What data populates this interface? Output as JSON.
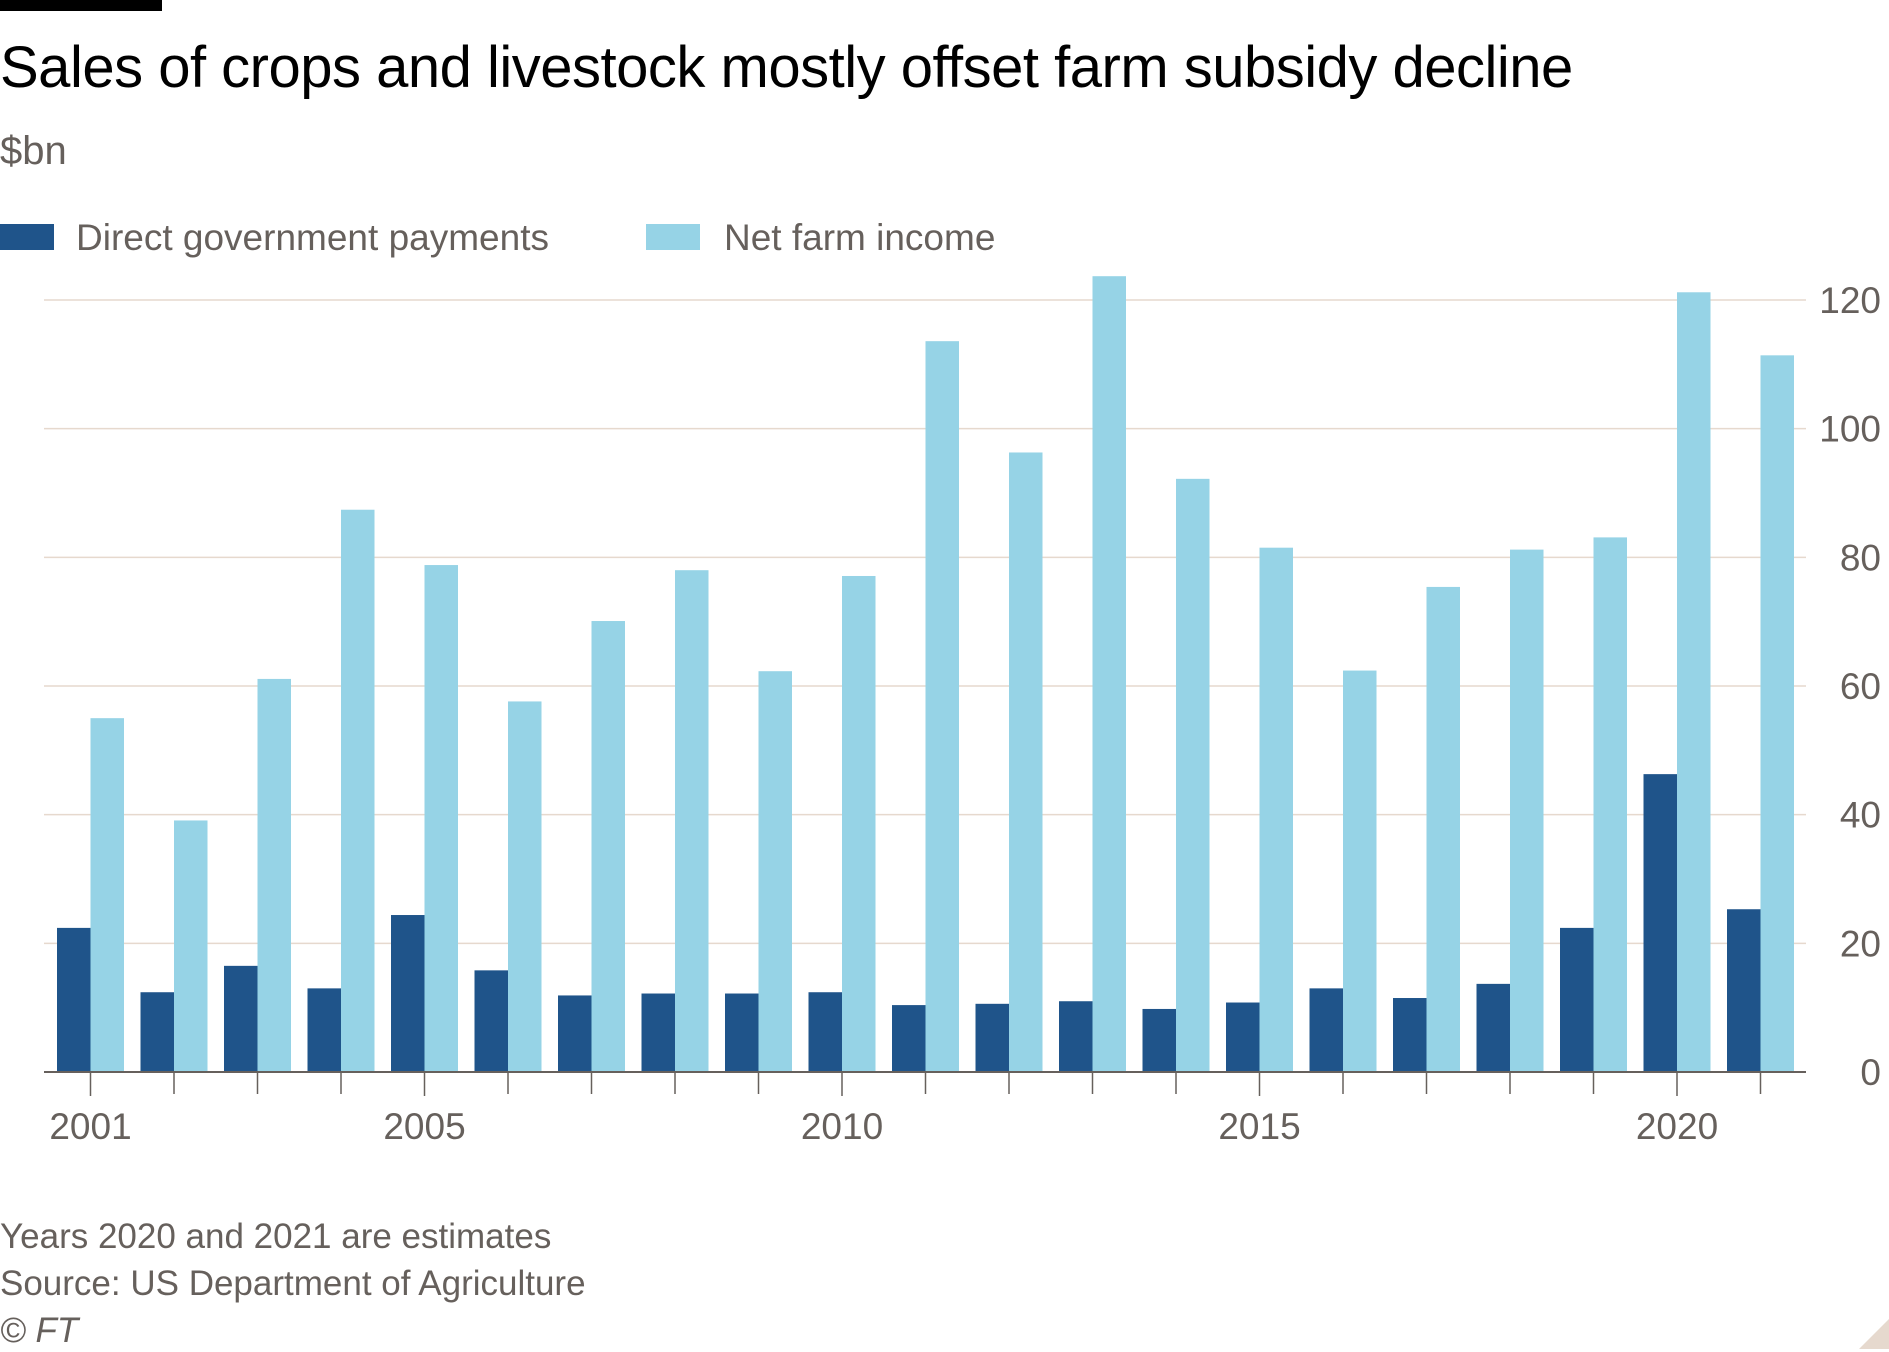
{
  "title": "Sales of crops and livestock mostly offset farm subsidy decline",
  "subtitle": "$bn",
  "footnotes": {
    "note": "Years 2020 and 2021 are estimates",
    "source": "Source: US Department of Agriculture",
    "credit": "© FT"
  },
  "colors": {
    "direct_payments": "#1f548a",
    "net_farm_income": "#96d3e6",
    "gridline": "#e6d9ce",
    "axis": "#66605c",
    "text": "#66605c"
  },
  "chart_data": {
    "type": "bar",
    "title": "Sales of crops and livestock mostly offset farm subsidy decline",
    "subtitle": "$bn",
    "ylim": [
      0,
      120
    ],
    "yticks": [
      0,
      20,
      40,
      60,
      80,
      100,
      120
    ],
    "y_axis_side": "right",
    "x_tick_labels": [
      "2001",
      "2005",
      "2010",
      "2015",
      "2020"
    ],
    "legend_position": "top-left",
    "grid": true,
    "categories": [
      "2001",
      "2002",
      "2003",
      "2004",
      "2005",
      "2006",
      "2007",
      "2008",
      "2009",
      "2010",
      "2011",
      "2012",
      "2013",
      "2014",
      "2015",
      "2016",
      "2017",
      "2018",
      "2019",
      "2020",
      "2021"
    ],
    "series": [
      {
        "name": "Direct government payments",
        "values": [
          22.4,
          12.4,
          16.5,
          13.0,
          24.4,
          15.8,
          11.9,
          12.2,
          12.2,
          12.4,
          10.4,
          10.6,
          11.0,
          9.8,
          10.8,
          13.0,
          11.5,
          13.7,
          22.4,
          46.3,
          25.3
        ]
      },
      {
        "name": "Net farm income",
        "values": [
          55.0,
          39.1,
          61.1,
          87.4,
          78.8,
          57.6,
          70.1,
          78.0,
          62.3,
          77.1,
          113.6,
          96.3,
          123.7,
          92.2,
          81.5,
          62.4,
          75.4,
          81.2,
          83.1,
          121.2,
          111.4
        ]
      }
    ]
  }
}
